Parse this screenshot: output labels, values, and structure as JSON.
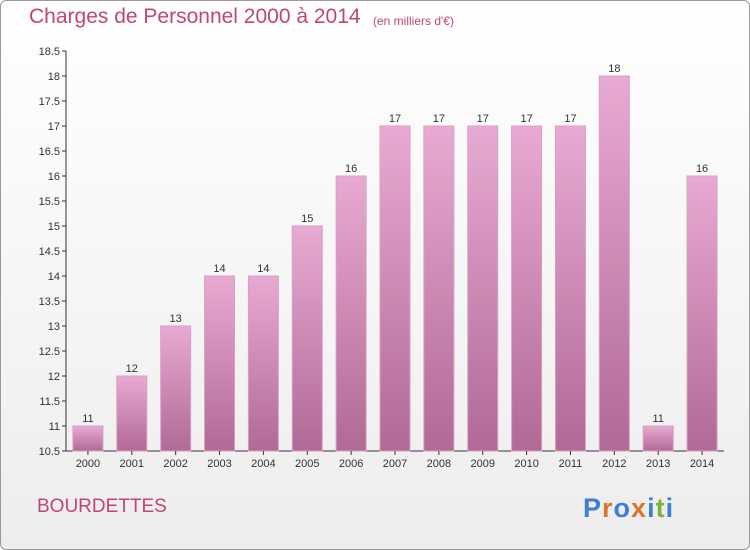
{
  "header": {
    "title": "Charges de Personnel 2000 à 2014",
    "subtitle": "(en milliers d'€)"
  },
  "footer": {
    "commune": "BOURDETTES",
    "logo_text": "Proxiti"
  },
  "colors": {
    "title": "#c2447a",
    "bar_top": "#e8aad2",
    "bar_bottom": "#b06a95"
  },
  "chart_data": {
    "type": "bar",
    "categories": [
      "2000",
      "2001",
      "2002",
      "2003",
      "2004",
      "2005",
      "2006",
      "2007",
      "2008",
      "2009",
      "2010",
      "2011",
      "2012",
      "2013",
      "2014"
    ],
    "values": [
      11,
      12,
      13,
      14,
      14,
      15,
      16,
      17,
      17,
      17,
      17,
      17,
      18,
      11,
      16
    ],
    "data_labels": [
      "11",
      "12",
      "13",
      "14",
      "14",
      "15",
      "16",
      "17",
      "17",
      "17",
      "17",
      "17",
      "18",
      "11",
      "16"
    ],
    "title": "Charges de Personnel 2000 à 2014",
    "subtitle": "(en milliers d'€)",
    "xlabel": "",
    "ylabel": "",
    "ylim": [
      10.5,
      18.5
    ],
    "yticks": [
      "10.5",
      "11",
      "11.5",
      "12",
      "12.5",
      "13",
      "13.5",
      "14",
      "14.5",
      "15",
      "15.5",
      "16",
      "16.5",
      "17",
      "17.5",
      "18",
      "18.5"
    ],
    "grid": false,
    "legend": "none"
  }
}
